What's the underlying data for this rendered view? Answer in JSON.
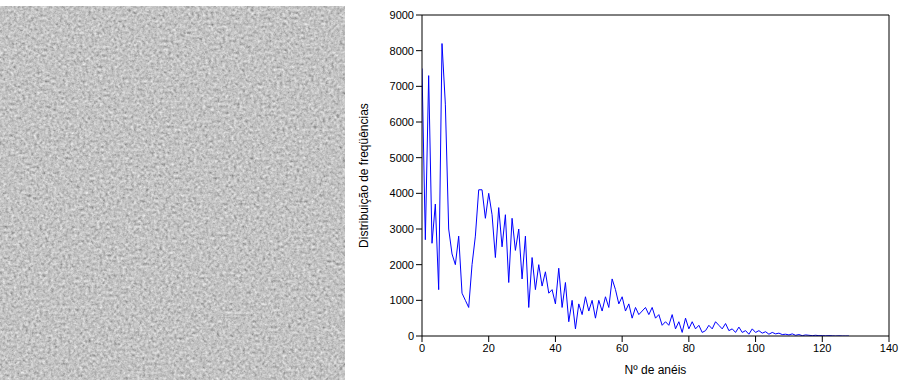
{
  "chart_data": {
    "type": "line",
    "x_label": "Nº de anéis",
    "y_label": "Distribuição de freqüências",
    "x": [
      0,
      1,
      2,
      3,
      4,
      5,
      6,
      7,
      8,
      9,
      10,
      11,
      12,
      13,
      14,
      15,
      16,
      17,
      18,
      19,
      20,
      21,
      22,
      23,
      24,
      25,
      26,
      27,
      28,
      29,
      30,
      31,
      32,
      33,
      34,
      35,
      36,
      37,
      38,
      39,
      40,
      41,
      42,
      43,
      44,
      45,
      46,
      47,
      48,
      49,
      50,
      51,
      52,
      53,
      54,
      55,
      56,
      57,
      58,
      59,
      60,
      61,
      62,
      63,
      64,
      65,
      66,
      67,
      68,
      69,
      70,
      71,
      72,
      73,
      74,
      75,
      76,
      77,
      78,
      79,
      80,
      81,
      82,
      83,
      84,
      85,
      86,
      87,
      88,
      89,
      90,
      91,
      92,
      93,
      94,
      95,
      96,
      97,
      98,
      99,
      100,
      101,
      102,
      103,
      104,
      105,
      106,
      107,
      108,
      109,
      110,
      111,
      112,
      113,
      114,
      115,
      116,
      117,
      118,
      119,
      120,
      121,
      122,
      123,
      124,
      125,
      126,
      127,
      128
    ],
    "values": [
      7500,
      2700,
      7300,
      2600,
      3700,
      1300,
      8200,
      6500,
      3000,
      2300,
      2000,
      2800,
      1200,
      1000,
      800,
      2000,
      2800,
      4100,
      4100,
      3300,
      4000,
      3400,
      2200,
      3600,
      2500,
      3400,
      1500,
      3300,
      2400,
      3000,
      1600,
      2800,
      800,
      2200,
      1300,
      2000,
      1400,
      1800,
      1200,
      1300,
      900,
      1900,
      800,
      1500,
      400,
      1000,
      200,
      900,
      600,
      1100,
      700,
      1000,
      500,
      1000,
      700,
      1100,
      800,
      1600,
      1300,
      900,
      1100,
      700,
      900,
      500,
      800,
      600,
      700,
      800,
      600,
      800,
      500,
      600,
      300,
      400,
      300,
      600,
      200,
      400,
      100,
      500,
      200,
      400,
      200,
      300,
      100,
      150,
      300,
      200,
      400,
      300,
      200,
      350,
      150,
      200,
      100,
      250,
      100,
      150,
      50,
      200,
      100,
      150,
      80,
      120,
      50,
      100,
      60,
      80,
      40,
      50,
      30,
      60,
      20,
      40,
      10,
      30,
      20,
      10,
      20,
      10,
      10,
      5,
      10,
      5,
      0,
      5,
      0,
      0,
      0
    ],
    "color": "#0000ff",
    "xlim": [
      0,
      140
    ],
    "xticks": [
      0,
      20,
      40,
      60,
      80,
      100,
      120,
      140
    ],
    "ylim": [
      0,
      9000
    ],
    "yticks": [
      0,
      1000,
      2000,
      3000,
      4000,
      5000,
      6000,
      7000,
      8000,
      9000
    ],
    "grid": false
  }
}
